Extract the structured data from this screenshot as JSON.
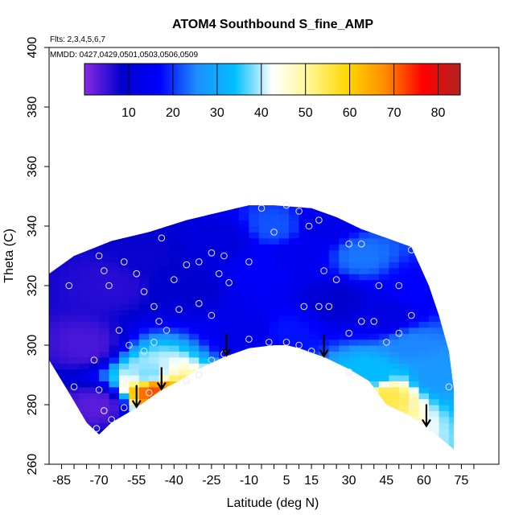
{
  "chart_data": {
    "type": "heatmap",
    "title": "ATOM4 Southbound S_fine_AMP",
    "annotations": {
      "flights": "Flts: 2,3,4,5,6,7",
      "dates": "MMDD: 0427,0429,0501,0503,0506,0509"
    },
    "xlabel": "Latitude (deg N)",
    "ylabel": "Theta (C)",
    "xlim": [
      -90,
      90
    ],
    "ylim": [
      260,
      400
    ],
    "xticks": [
      -85,
      -70,
      -55,
      -40,
      -25,
      -10,
      5,
      15,
      30,
      45,
      60,
      75
    ],
    "yticks": [
      260,
      280,
      300,
      320,
      340,
      360,
      380,
      400
    ],
    "colorbar": {
      "min": 0,
      "max": 85,
      "ticks": [
        10,
        20,
        30,
        40,
        50,
        60,
        70,
        80
      ],
      "colors": [
        "#8a2be2",
        "#0000cd",
        "#0000ff",
        "#1e90ff",
        "#00bfff",
        "#ffffff",
        "#fff68f",
        "#ffd700",
        "#ff8c00",
        "#ff0000",
        "#b22222"
      ]
    },
    "domain_top": [
      [
        -90,
        324
      ],
      [
        -80,
        330
      ],
      [
        -65,
        335
      ],
      [
        -50,
        338
      ],
      [
        -35,
        342
      ],
      [
        -20,
        345
      ],
      [
        -10,
        347
      ],
      [
        0,
        347
      ],
      [
        15,
        346
      ],
      [
        25,
        343
      ],
      [
        35,
        339
      ],
      [
        45,
        336
      ],
      [
        55,
        333
      ],
      [
        62,
        320
      ],
      [
        66,
        310
      ],
      [
        70,
        298
      ],
      [
        72,
        285
      ],
      [
        72,
        265
      ]
    ],
    "domain_bottom": [
      [
        72,
        265
      ],
      [
        62,
        272
      ],
      [
        55,
        276
      ],
      [
        45,
        280
      ],
      [
        38,
        288
      ],
      [
        30,
        292
      ],
      [
        20,
        296
      ],
      [
        10,
        299
      ],
      [
        5,
        300
      ],
      [
        0,
        300
      ],
      [
        -10,
        299
      ],
      [
        -20,
        296
      ],
      [
        -30,
        292
      ],
      [
        -38,
        288
      ],
      [
        -45,
        285
      ],
      [
        -50,
        282
      ],
      [
        -55,
        279
      ],
      [
        -65,
        274
      ],
      [
        -70,
        270
      ],
      [
        -75,
        274
      ],
      [
        -82,
        284
      ],
      [
        -90,
        295
      ]
    ],
    "field_samples": [
      {
        "lat": -75,
        "theta": 300,
        "value": 4
      },
      {
        "lat": -65,
        "theta": 320,
        "value": 6
      },
      {
        "lat": -50,
        "theta": 330,
        "value": 8
      },
      {
        "lat": -35,
        "theta": 320,
        "value": 9
      },
      {
        "lat": -20,
        "theta": 335,
        "value": 11
      },
      {
        "lat": -5,
        "theta": 325,
        "value": 16
      },
      {
        "lat": 0,
        "theta": 340,
        "value": 22
      },
      {
        "lat": 10,
        "theta": 330,
        "value": 14
      },
      {
        "lat": 20,
        "theta": 340,
        "value": 13
      },
      {
        "lat": 25,
        "theta": 315,
        "value": 9
      },
      {
        "lat": 35,
        "theta": 330,
        "value": 24
      },
      {
        "lat": 45,
        "theta": 310,
        "value": 12
      },
      {
        "lat": 55,
        "theta": 320,
        "value": 17
      },
      {
        "lat": 55,
        "theta": 300,
        "value": 25
      },
      {
        "lat": 65,
        "theta": 290,
        "value": 27
      },
      {
        "lat": 45,
        "theta": 283,
        "value": 55
      },
      {
        "lat": 40,
        "theta": 290,
        "value": 33
      },
      {
        "lat": -48,
        "theta": 285,
        "value": 72
      },
      {
        "lat": -50,
        "theta": 290,
        "value": 38
      },
      {
        "lat": -70,
        "theta": 280,
        "value": 3
      },
      {
        "lat": -10,
        "theta": 305,
        "value": 13
      },
      {
        "lat": 5,
        "theta": 305,
        "value": 18
      }
    ],
    "sample_points": [
      [
        -70,
        330
      ],
      [
        -68,
        325
      ],
      [
        -66,
        320
      ],
      [
        -60,
        328
      ],
      [
        -55,
        324
      ],
      [
        -52,
        318
      ],
      [
        -45,
        336
      ],
      [
        -40,
        322
      ],
      [
        -35,
        327
      ],
      [
        -30,
        328
      ],
      [
        -25,
        331
      ],
      [
        -22,
        324
      ],
      [
        -20,
        330
      ],
      [
        -18,
        321
      ],
      [
        -10,
        328
      ],
      [
        -5,
        346
      ],
      [
        0,
        338
      ],
      [
        5,
        347
      ],
      [
        10,
        345
      ],
      [
        14,
        340
      ],
      [
        18,
        342
      ],
      [
        20,
        325
      ],
      [
        25,
        322
      ],
      [
        30,
        334
      ],
      [
        35,
        334
      ],
      [
        42,
        320
      ],
      [
        50,
        320
      ],
      [
        55,
        332
      ],
      [
        -62,
        305
      ],
      [
        -58,
        300
      ],
      [
        -48,
        313
      ],
      [
        -46,
        308
      ],
      [
        -43,
        305
      ],
      [
        -38,
        312
      ],
      [
        -30,
        314
      ],
      [
        -25,
        310
      ],
      [
        -10,
        302
      ],
      [
        -2,
        301
      ],
      [
        5,
        301
      ],
      [
        10,
        300
      ],
      [
        15,
        298
      ],
      [
        12,
        313
      ],
      [
        18,
        313
      ],
      [
        22,
        313
      ],
      [
        30,
        304
      ],
      [
        35,
        308
      ],
      [
        40,
        308
      ],
      [
        45,
        301
      ],
      [
        50,
        304
      ],
      [
        55,
        310
      ],
      [
        -82,
        320
      ],
      [
        -80,
        286
      ],
      [
        -72,
        295
      ],
      [
        -70,
        285
      ],
      [
        -68,
        278
      ],
      [
        -60,
        279
      ],
      [
        -65,
        275
      ],
      [
        -71,
        272
      ],
      [
        -52,
        298
      ],
      [
        -48,
        301
      ],
      [
        -35,
        288
      ],
      [
        -30,
        290
      ],
      [
        -25,
        295
      ],
      [
        -20,
        297
      ],
      [
        55,
        280
      ],
      [
        70,
        286
      ],
      [
        30,
        291
      ],
      [
        -45,
        287
      ],
      [
        -50,
        284
      ]
    ],
    "arrows": [
      -55,
      -45,
      -19,
      20,
      61
    ]
  }
}
